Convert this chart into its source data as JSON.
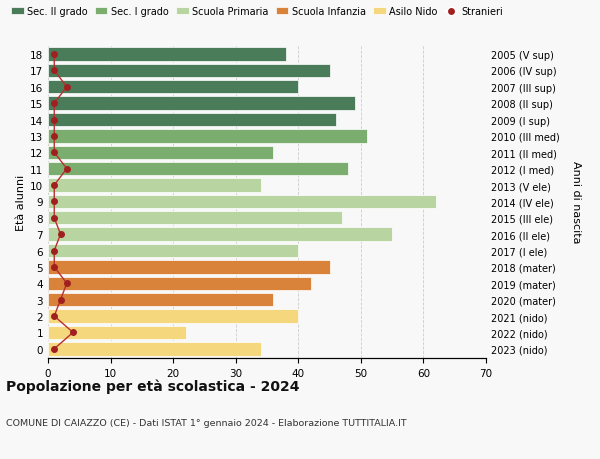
{
  "ages": [
    18,
    17,
    16,
    15,
    14,
    13,
    12,
    11,
    10,
    9,
    8,
    7,
    6,
    5,
    4,
    3,
    2,
    1,
    0
  ],
  "years": [
    "2005 (V sup)",
    "2006 (IV sup)",
    "2007 (III sup)",
    "2008 (II sup)",
    "2009 (I sup)",
    "2010 (III med)",
    "2011 (II med)",
    "2012 (I med)",
    "2013 (V ele)",
    "2014 (IV ele)",
    "2015 (III ele)",
    "2016 (II ele)",
    "2017 (I ele)",
    "2018 (mater)",
    "2019 (mater)",
    "2020 (mater)",
    "2021 (nido)",
    "2022 (nido)",
    "2023 (nido)"
  ],
  "values": [
    38,
    45,
    40,
    49,
    46,
    51,
    36,
    48,
    34,
    62,
    47,
    55,
    40,
    45,
    42,
    36,
    40,
    22,
    34
  ],
  "stranieri": [
    1,
    1,
    3,
    1,
    1,
    1,
    1,
    3,
    1,
    1,
    1,
    2,
    1,
    1,
    3,
    2,
    1,
    4,
    1
  ],
  "bar_colors": [
    "#4a7c59",
    "#4a7c59",
    "#4a7c59",
    "#4a7c59",
    "#4a7c59",
    "#7aad6e",
    "#7aad6e",
    "#7aad6e",
    "#b8d4a0",
    "#b8d4a0",
    "#b8d4a0",
    "#b8d4a0",
    "#b8d4a0",
    "#d9823a",
    "#d9823a",
    "#d9823a",
    "#f5d77e",
    "#f5d77e",
    "#f5d77e"
  ],
  "legend_labels": [
    "Sec. II grado",
    "Sec. I grado",
    "Scuola Primaria",
    "Scuola Infanzia",
    "Asilo Nido",
    "Stranieri"
  ],
  "legend_colors": [
    "#4a7c59",
    "#7aad6e",
    "#b8d4a0",
    "#d9823a",
    "#f5d77e",
    "#a02020"
  ],
  "stranieri_color": "#a02020",
  "stranieri_line_color": "#b83030",
  "title": "Popolazione per età scolastica - 2024",
  "subtitle": "COMUNE DI CAIAZZO (CE) - Dati ISTAT 1° gennaio 2024 - Elaborazione TUTTITALIA.IT",
  "ylabel_left": "Età alunni",
  "ylabel_right": "Anni di nascita",
  "xlim": [
    0,
    70
  ],
  "ylim": [
    -0.55,
    18.55
  ],
  "xticks": [
    0,
    10,
    20,
    30,
    40,
    50,
    60,
    70
  ],
  "background_color": "#f8f8f8",
  "grid_color": "#cccccc"
}
